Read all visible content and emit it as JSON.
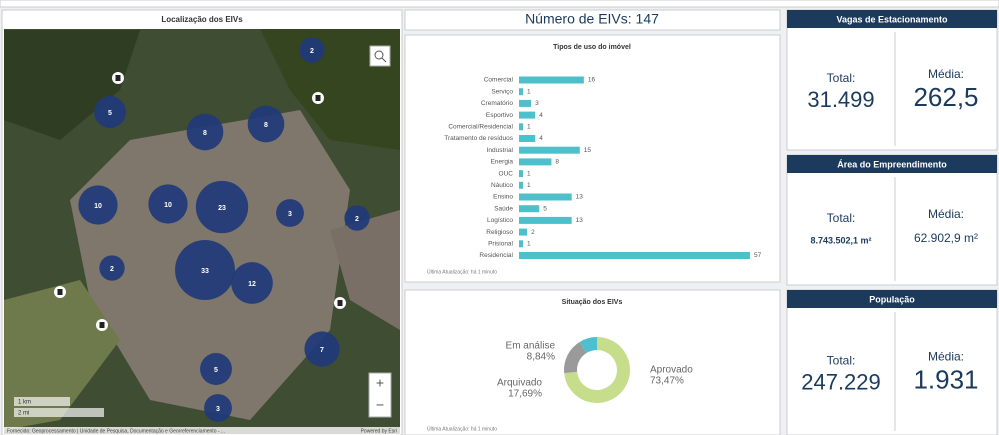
{
  "map": {
    "title": "Localização dos EIVs",
    "clusters": [
      2,
      5,
      8,
      8,
      10,
      10,
      23,
      3,
      2,
      2,
      33,
      12,
      7,
      5,
      3
    ],
    "scale_km": "1 km",
    "scale_mi": "2 mi",
    "attribution": "Fornecido: Geoprocessamento | Unidade de Pesquisa, Documentação e Georreferenciamento - ...",
    "powered": "Powered by Esri"
  },
  "header": {
    "title": "Número de EIVs: 147"
  },
  "bar_chart": {
    "type": "bar",
    "title": "Tipos de uso do imóvel",
    "categories": [
      "Comercial",
      "Serviço",
      "Crematório",
      "Esportivo",
      "Comercial/Residencial",
      "Tratamento de resíduos",
      "Industrial",
      "Energia",
      "OUC",
      "Náutico",
      "Ensino",
      "Saúde",
      "Logístico",
      "Religioso",
      "Prisional",
      "Residencial"
    ],
    "values": [
      16,
      1,
      3,
      4,
      1,
      4,
      15,
      8,
      1,
      1,
      13,
      5,
      13,
      2,
      1,
      57
    ],
    "color": "#4dc0cc",
    "footer": "Última Atualização: há 1 minuto"
  },
  "pie_chart": {
    "type": "pie",
    "donut": true,
    "title": "Situação dos EIVs",
    "categories": [
      "Aprovado",
      "Arquivado",
      "Em análise"
    ],
    "values": [
      73.47,
      17.69,
      8.84
    ],
    "value_labels": [
      "73,47%",
      "17,69%",
      "8,84%"
    ],
    "colors": [
      "#c6de8c",
      "#9a9a9a",
      "#4dbfcf"
    ],
    "footer": "Última Atualização: há 1 minuto"
  },
  "stats": [
    {
      "title": "Vagas de Estacionamento",
      "total_label": "Total:",
      "total": "31.499",
      "mean_label": "Média:",
      "mean": "262,5"
    },
    {
      "title": "Área do Empreendimento",
      "total_label": "Total:",
      "total": "8.743.502,1 m²",
      "mean_label": "Média:",
      "mean": "62.902,9 m²"
    },
    {
      "title": "População",
      "total_label": "Total:",
      "total": "247.229",
      "mean_label": "Média:",
      "mean": "1.931"
    }
  ]
}
